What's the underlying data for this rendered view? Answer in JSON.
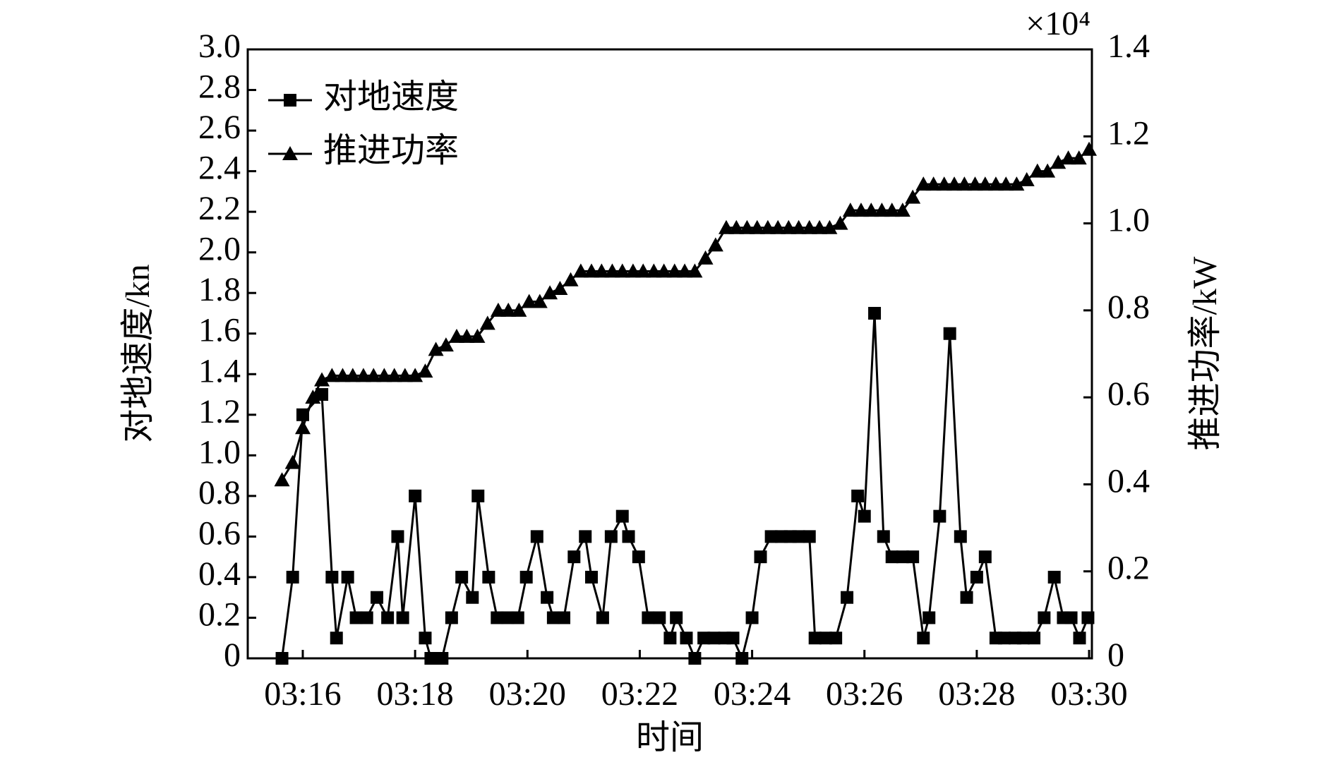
{
  "chart_data": {
    "type": "line",
    "xlabel": "时间",
    "ylabel": "对地速度/kn",
    "y2label": "推进功率/kW",
    "y2_multiplier": "×10⁴",
    "xlim": [
      15.02,
      30.05
    ],
    "xticks": [
      {
        "value": 16,
        "label": "03:16"
      },
      {
        "value": 18,
        "label": "03:18"
      },
      {
        "value": 20,
        "label": "03:20"
      },
      {
        "value": 22,
        "label": "03:22"
      },
      {
        "value": 24,
        "label": "03:24"
      },
      {
        "value": 26,
        "label": "03:26"
      },
      {
        "value": 28,
        "label": "03:28"
      },
      {
        "value": 30,
        "label": "03:30"
      }
    ],
    "ylim": [
      0,
      3
    ],
    "yticks": [
      0,
      {
        "value": 0.2,
        "label": "0.2"
      },
      {
        "value": 0.4,
        "label": "0.4"
      },
      {
        "value": 0.6,
        "label": "0.6"
      },
      {
        "value": 0.8,
        "label": "0.8"
      },
      {
        "value": 1,
        "label": "1.0"
      },
      {
        "value": 1.2,
        "label": "1.2"
      },
      {
        "value": 1.4,
        "label": "1.4"
      },
      {
        "value": 1.6,
        "label": "1.6"
      },
      {
        "value": 1.8,
        "label": "1.8"
      },
      {
        "value": 2,
        "label": "2.0"
      },
      {
        "value": 2.2,
        "label": "2.2"
      },
      {
        "value": 2.4,
        "label": "2.4"
      },
      {
        "value": 2.6,
        "label": "2.6"
      },
      {
        "value": 2.8,
        "label": "2.8"
      },
      {
        "value": 3,
        "label": "3.0"
      }
    ],
    "y2lim": [
      0,
      1.4
    ],
    "y2ticks": [
      0,
      {
        "value": 0.2,
        "label": "0.2"
      },
      {
        "value": 0.4,
        "label": "0.4"
      },
      {
        "value": 0.6,
        "label": "0.6"
      },
      {
        "value": 0.8,
        "label": "0.8"
      },
      {
        "value": 1,
        "label": "1.0"
      },
      {
        "value": 1.2,
        "label": "1.2"
      },
      {
        "value": 1.4,
        "label": "1.4"
      }
    ],
    "legend": "upper left",
    "series": [
      {
        "name": "对地速度",
        "color": "#000000",
        "marker": "square",
        "axis": "y",
        "x": [
          15.63,
          15.82,
          16.0,
          16.34,
          16.52,
          16.6,
          16.8,
          16.95,
          17.14,
          17.32,
          17.51,
          17.69,
          17.78,
          18.0,
          18.18,
          18.28,
          18.48,
          18.65,
          18.83,
          19.02,
          19.12,
          19.31,
          19.46,
          19.65,
          19.83,
          19.98,
          20.17,
          20.35,
          20.46,
          20.65,
          20.83,
          21.03,
          21.14,
          21.34,
          21.49,
          21.69,
          21.8,
          21.98,
          22.15,
          22.35,
          22.54,
          22.65,
          22.83,
          22.98,
          23.14,
          23.32,
          23.51,
          23.66,
          23.82,
          24.0,
          24.15,
          24.34,
          24.52,
          24.68,
          24.83,
          25.02,
          25.12,
          25.31,
          25.49,
          25.69,
          25.88,
          26.0,
          26.18,
          26.34,
          26.49,
          26.68,
          26.86,
          27.05,
          27.15,
          27.34,
          27.52,
          27.71,
          27.82,
          28.0,
          28.15,
          28.34,
          28.49,
          28.68,
          28.83,
          29.02,
          29.2,
          29.38,
          29.54,
          29.68,
          29.83,
          29.98
        ],
        "values": [
          0,
          0.4,
          1.2,
          1.3,
          0.4,
          0.1,
          0.4,
          0.2,
          0.2,
          0.3,
          0.2,
          0.6,
          0.2,
          0.8,
          0.1,
          0,
          0,
          0.2,
          0.4,
          0.3,
          0.8,
          0.4,
          0.2,
          0.2,
          0.2,
          0.4,
          0.6,
          0.3,
          0.2,
          0.2,
          0.5,
          0.6,
          0.4,
          0.2,
          0.6,
          0.7,
          0.6,
          0.5,
          0.2,
          0.2,
          0.1,
          0.2,
          0.1,
          0,
          0.1,
          0.1,
          0.1,
          0.1,
          0,
          0.2,
          0.5,
          0.6,
          0.6,
          0.6,
          0.6,
          0.6,
          0.1,
          0.1,
          0.1,
          0.3,
          0.8,
          0.7,
          1.7,
          0.6,
          0.5,
          0.5,
          0.5,
          0.1,
          0.2,
          0.7,
          1.6,
          0.6,
          0.3,
          0.4,
          0.5,
          0.1,
          0.1,
          0.1,
          0.1,
          0.1,
          0.2,
          0.4,
          0.2,
          0.2,
          0.1,
          0.2
        ]
      },
      {
        "name": "推进功率",
        "color": "#000000",
        "marker": "triangle",
        "axis": "y2",
        "x": [
          15.63,
          15.82,
          16.0,
          16.18,
          16.34,
          16.52,
          16.71,
          16.89,
          17.08,
          17.26,
          17.45,
          17.63,
          17.82,
          18.0,
          18.18,
          18.37,
          18.55,
          18.74,
          18.92,
          19.11,
          19.29,
          19.48,
          19.66,
          19.85,
          20.03,
          20.22,
          20.4,
          20.58,
          20.77,
          20.95,
          21.14,
          21.32,
          21.51,
          21.69,
          21.88,
          22.06,
          22.25,
          22.43,
          22.62,
          22.8,
          22.98,
          23.17,
          23.35,
          23.54,
          23.72,
          23.91,
          24.09,
          24.28,
          24.46,
          24.65,
          24.83,
          25.02,
          25.2,
          25.38,
          25.57,
          25.75,
          25.94,
          26.12,
          26.31,
          26.49,
          26.68,
          26.86,
          27.05,
          27.23,
          27.42,
          27.6,
          27.78,
          27.97,
          28.15,
          28.34,
          28.52,
          28.71,
          28.89,
          29.08,
          29.26,
          29.45,
          29.63,
          29.82,
          30.0
        ],
        "values": [
          0.41,
          0.45,
          0.53,
          0.6,
          0.64,
          0.65,
          0.65,
          0.65,
          0.65,
          0.65,
          0.65,
          0.65,
          0.65,
          0.65,
          0.66,
          0.71,
          0.72,
          0.74,
          0.74,
          0.74,
          0.77,
          0.8,
          0.8,
          0.8,
          0.82,
          0.82,
          0.84,
          0.85,
          0.87,
          0.89,
          0.89,
          0.89,
          0.89,
          0.89,
          0.89,
          0.89,
          0.89,
          0.89,
          0.89,
          0.89,
          0.89,
          0.92,
          0.95,
          0.99,
          0.99,
          0.99,
          0.99,
          0.99,
          0.99,
          0.99,
          0.99,
          0.99,
          0.99,
          0.99,
          1.0,
          1.03,
          1.03,
          1.03,
          1.03,
          1.03,
          1.03,
          1.06,
          1.09,
          1.09,
          1.09,
          1.09,
          1.09,
          1.09,
          1.09,
          1.09,
          1.09,
          1.09,
          1.1,
          1.12,
          1.12,
          1.14,
          1.15,
          1.15,
          1.17
        ]
      }
    ]
  }
}
